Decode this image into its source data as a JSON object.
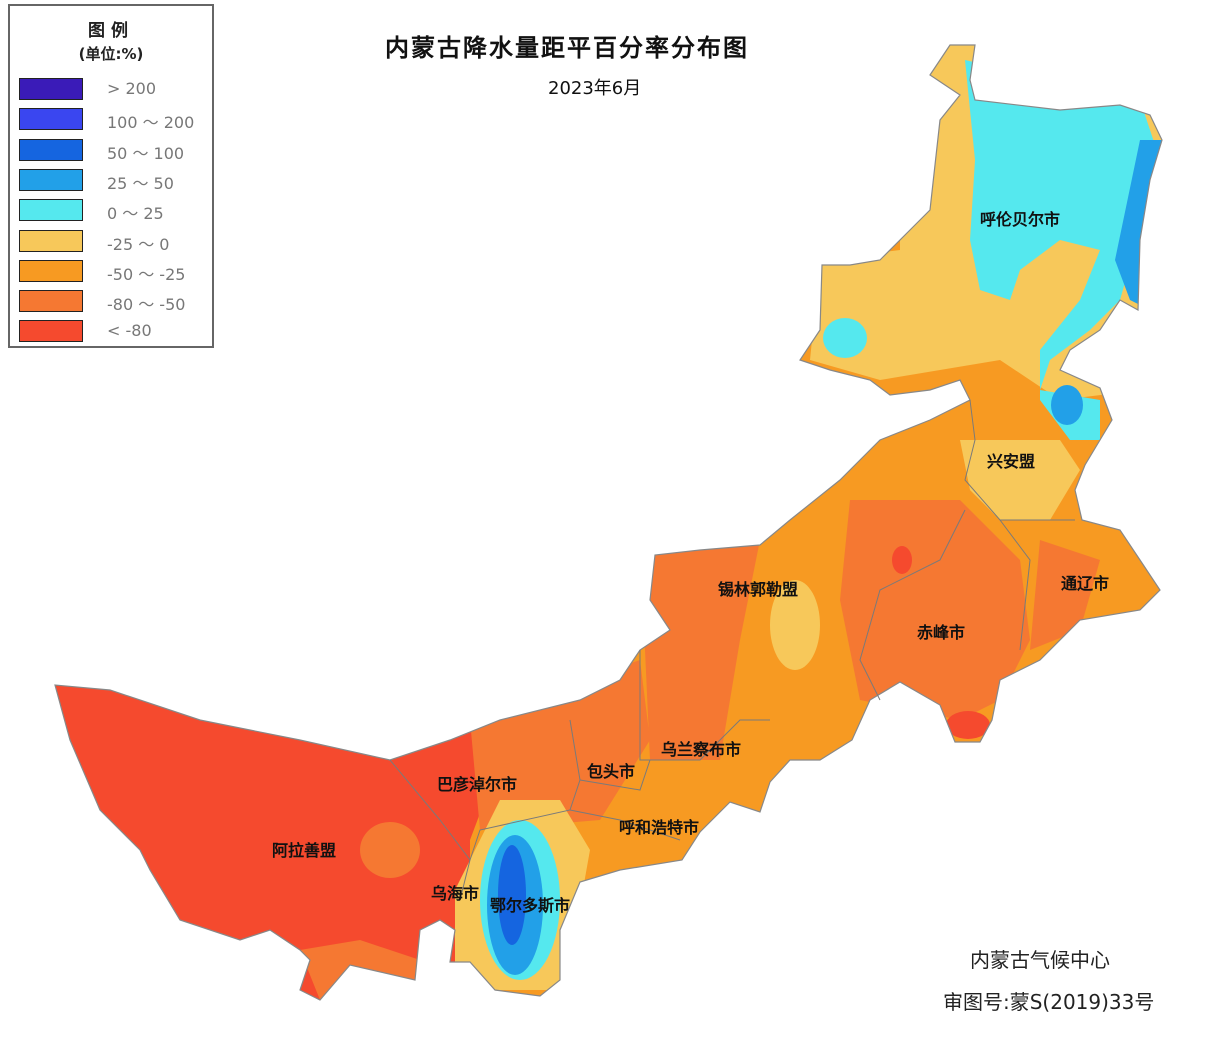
{
  "title": "内蒙古降水量距平百分率分布图",
  "subtitle": "2023年6月",
  "legend": {
    "title": "图例",
    "unit": "(单位:%)",
    "items": [
      {
        "label": "> 200",
        "color": "#3A1BB8"
      },
      {
        "label": "100 ～ 200",
        "color": "#3A46F0"
      },
      {
        "label": "50 ～ 100",
        "color": "#1565E0"
      },
      {
        "label": "25 ～ 50",
        "color": "#22A0E8"
      },
      {
        "label": "0 ～ 25",
        "color": "#55E8EE"
      },
      {
        "label": "-25 ～ 0",
        "color": "#F7C85A"
      },
      {
        "label": "-50 ～ -25",
        "color": "#F79A22"
      },
      {
        "label": "-80 ～ -50",
        "color": "#F57832"
      },
      {
        "label": "< -80",
        "color": "#F54A2E"
      }
    ]
  },
  "regions": {
    "hulunbuir": "呼伦贝尔市",
    "xinganmeng": "兴安盟",
    "tongliao": "通辽市",
    "chifeng": "赤峰市",
    "xilingol": "锡林郭勒盟",
    "ulanqab": "乌兰察布市",
    "baotou": "包头市",
    "hohhot": "呼和浩特市",
    "bayannur": "巴彦淖尔市",
    "alxa": "阿拉善盟",
    "wuhai": "乌海市",
    "ordos": "鄂尔多斯市"
  },
  "credits": {
    "agency": "内蒙古气候中心",
    "approval": "审图号:蒙S(2019)33号"
  }
}
